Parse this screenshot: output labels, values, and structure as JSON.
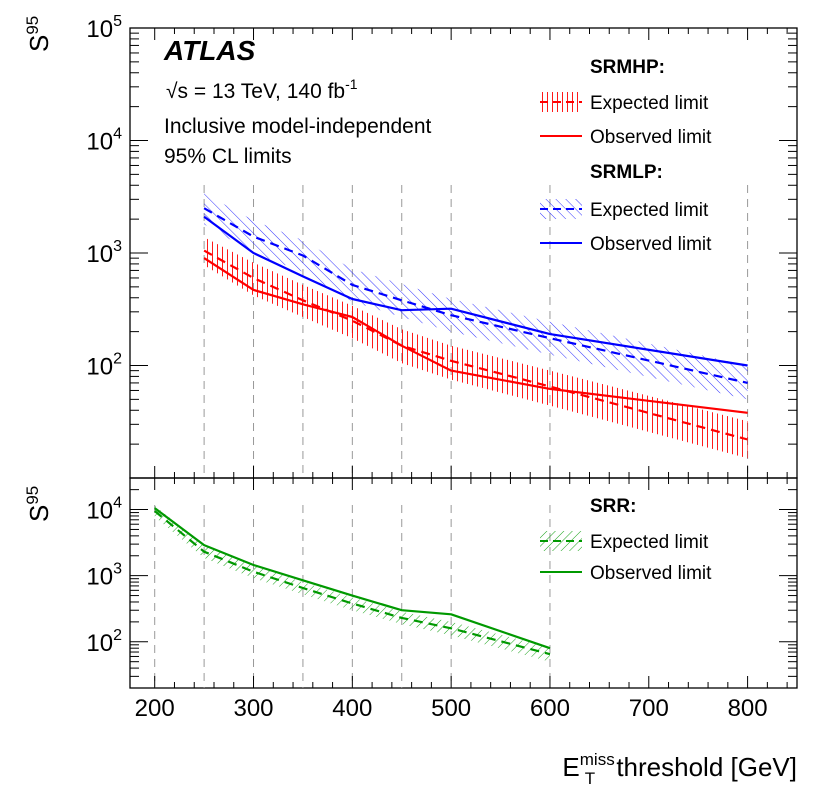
{
  "chart_data": {
    "type": "line",
    "experiment": "ATLAS",
    "energy_label": "√s = 13 TeV, 140 fb⁻¹",
    "energy": {
      "root": "√",
      "s_eq": "s = 13 TeV, 140 fb",
      "sup": "-1"
    },
    "description": [
      "Inclusive model-independent",
      "95% CL limits"
    ],
    "xlabel": {
      "main": "E",
      "sup": "miss",
      "sub": "T",
      "rest": " threshold [GeV]"
    },
    "ylabel": {
      "main": "S",
      "sup": "95"
    },
    "xlim": [
      175,
      850
    ],
    "x_ticks": [
      200,
      300,
      400,
      500,
      600,
      700,
      800
    ],
    "x_ticklabels": [
      "200",
      "300",
      "400",
      "500",
      "600",
      "700",
      "800"
    ],
    "thresholds": [
      200,
      250,
      300,
      350,
      400,
      450,
      500,
      600,
      800
    ],
    "panels": [
      {
        "name": "top",
        "yscale": "log",
        "ylim": [
          10,
          100000
        ],
        "y_ticks": [
          {
            "base": "10",
            "exp": "5",
            "v": 100000
          },
          {
            "base": "10",
            "exp": "4",
            "v": 10000
          },
          {
            "base": "10",
            "exp": "3",
            "v": 1000
          },
          {
            "base": "10",
            "exp": "2",
            "v": 100
          }
        ],
        "legend": [
          {
            "header": "SRMHP:",
            "expected": "Expected limit",
            "observed": "Observed limit"
          },
          {
            "header": "SRMLP:",
            "expected": "Expected limit",
            "observed": "Observed limit"
          }
        ],
        "series": [
          {
            "name": "SRMHP Expected limit",
            "region": "SRMHP",
            "kind": "expected",
            "color": "#ff0000",
            "x": [
              250,
              300,
              350,
              400,
              450,
              500,
              600,
              800
            ],
            "values": [
              1050,
              600,
              380,
              250,
              150,
              110,
              65,
              22
            ],
            "band_low": [
              780,
              420,
              270,
              175,
              105,
              75,
              44,
              15
            ],
            "band_high": [
              1380,
              820,
              520,
              340,
              210,
              150,
              90,
              32
            ]
          },
          {
            "name": "SRMHP Observed limit",
            "region": "SRMHP",
            "kind": "observed",
            "color": "#ff0000",
            "x": [
              250,
              300,
              350,
              400,
              450,
              500,
              600,
              800
            ],
            "values": [
              900,
              470,
              350,
              270,
              150,
              90,
              62,
              38
            ]
          },
          {
            "name": "SRMLP Expected limit",
            "region": "SRMLP",
            "kind": "expected",
            "color": "#0000ff",
            "x": [
              250,
              300,
              350,
              400,
              450,
              500,
              600,
              800
            ],
            "values": [
              2500,
              1400,
              950,
              520,
              380,
              280,
              175,
              70
            ],
            "band_low": [
              1800,
              1000,
              680,
              370,
              270,
              200,
              125,
              50
            ],
            "band_high": [
              3400,
              1950,
              1300,
              720,
              530,
              390,
              245,
              100
            ]
          },
          {
            "name": "SRMLP Observed limit",
            "region": "SRMLP",
            "kind": "observed",
            "color": "#0000ff",
            "x": [
              250,
              300,
              350,
              400,
              450,
              500,
              600,
              800
            ],
            "values": [
              2100,
              1000,
              620,
              390,
              310,
              320,
              190,
              100
            ]
          }
        ]
      },
      {
        "name": "bottom",
        "yscale": "log",
        "ylim": [
          20,
          30000
        ],
        "y_ticks": [
          {
            "base": "10",
            "exp": "4",
            "v": 10000
          },
          {
            "base": "10",
            "exp": "3",
            "v": 1000
          },
          {
            "base": "10",
            "exp": "2",
            "v": 100
          }
        ],
        "legend": [
          {
            "header": "SRR:",
            "expected": "Expected limit",
            "observed": "Observed limit"
          }
        ],
        "series": [
          {
            "name": "SRR Expected limit",
            "region": "SRR",
            "kind": "expected",
            "color": "#009900",
            "x": [
              200,
              250,
              300,
              350,
              400,
              450,
              500,
              600
            ],
            "values": [
              9500,
              2300,
              1150,
              650,
              380,
              230,
              160,
              65
            ],
            "band_low": [
              7800,
              1850,
              920,
              520,
              300,
              185,
              125,
              50
            ],
            "band_high": [
              11500,
              2850,
              1420,
              800,
              470,
              285,
              200,
              82
            ]
          },
          {
            "name": "SRR Observed limit",
            "region": "SRR",
            "kind": "observed",
            "color": "#009900",
            "x": [
              200,
              250,
              300,
              350,
              400,
              450,
              500,
              600
            ],
            "values": [
              10500,
              2900,
              1450,
              850,
              500,
              300,
              260,
              80
            ]
          }
        ]
      }
    ]
  }
}
